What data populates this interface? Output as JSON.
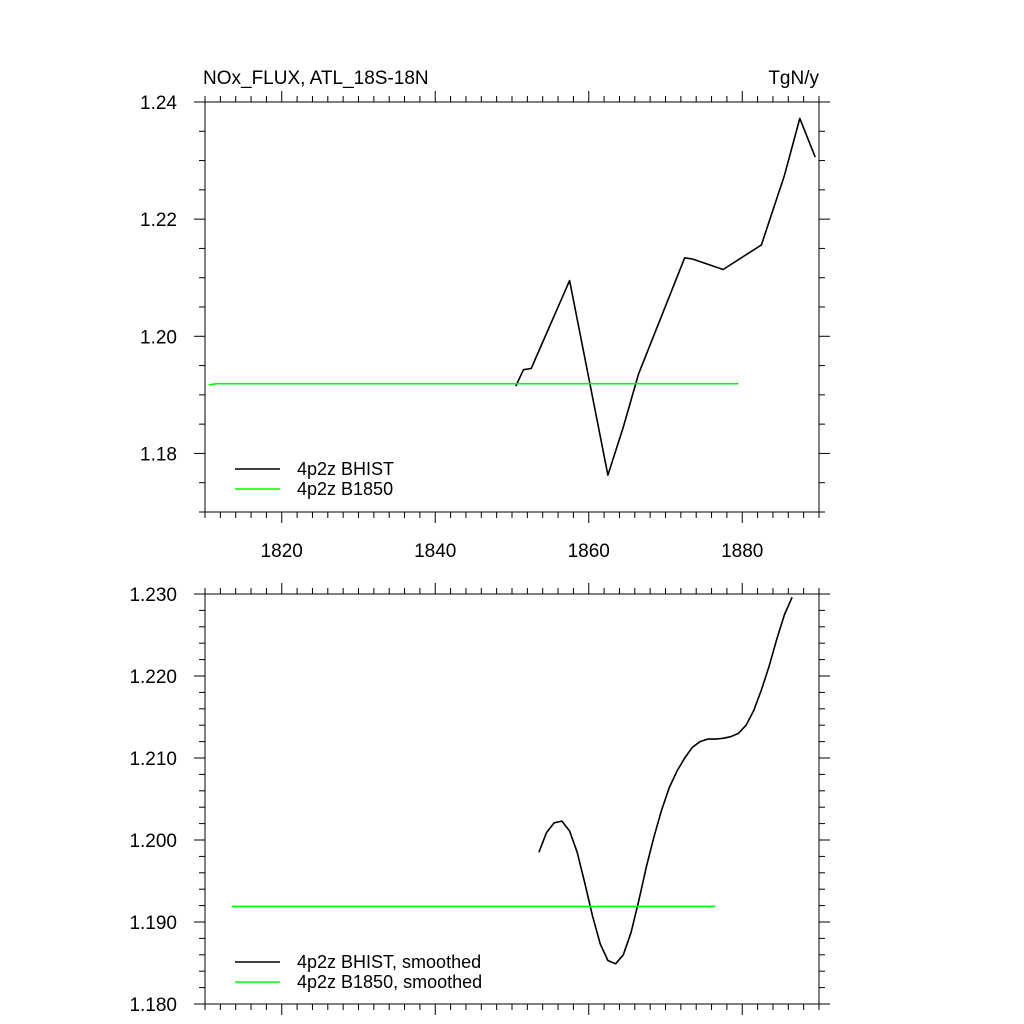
{
  "chart_data": [
    {
      "type": "line",
      "title_left": "NOx_FLUX, ATL_18S-18N",
      "title_right": "TgN/y",
      "xlim": [
        1810,
        1890
      ],
      "ylim": [
        1.17,
        1.24
      ],
      "xticks": [
        1820,
        1840,
        1860,
        1880
      ],
      "xtick_labels": [
        "1820",
        "1840",
        "1860",
        "1880"
      ],
      "yticks": [
        1.18,
        1.2,
        1.22,
        1.24
      ],
      "ytick_labels": [
        "1.18",
        "1.20",
        "1.22",
        "1.24"
      ],
      "legend_position": "bottom-left",
      "series": [
        {
          "name": "4p2z BHIST",
          "color": "#000000",
          "x": [
            1850.5,
            1851.5,
            1852.5,
            1857.5,
            1862.5,
            1864.5,
            1866.5,
            1872.5,
            1873.5,
            1877.5,
            1882.5,
            1885.5,
            1887.5,
            1889.5
          ],
          "y": [
            1.1915,
            1.1943,
            1.1945,
            1.2095,
            1.1763,
            1.1845,
            1.1936,
            1.2134,
            1.2132,
            1.2114,
            1.2156,
            1.2275,
            1.2372,
            1.2306
          ]
        },
        {
          "name": "4p2z B1850",
          "color": "#00ff00",
          "x": [
            1810.5,
            1811.5,
            1812.5,
            1830,
            1850,
            1865,
            1879.5
          ],
          "y": [
            1.1917,
            1.1919,
            1.1919,
            1.1919,
            1.1919,
            1.1919,
            1.1919
          ]
        }
      ]
    },
    {
      "type": "line",
      "xlim": [
        1810,
        1890
      ],
      "ylim": [
        1.18,
        1.23
      ],
      "xticks": [
        1820,
        1840,
        1860,
        1880
      ],
      "yticks": [
        1.18,
        1.19,
        1.2,
        1.21,
        1.22,
        1.23
      ],
      "ytick_labels": [
        "1.180",
        "1.190",
        "1.200",
        "1.210",
        "1.220",
        "1.230"
      ],
      "legend_position": "bottom-left",
      "series": [
        {
          "name": "4p2z BHIST, smoothed",
          "color": "#000000",
          "x": [
            1853.5,
            1854.5,
            1855.5,
            1856.5,
            1857.5,
            1858.5,
            1859.5,
            1860.5,
            1861.5,
            1862.5,
            1863.5,
            1864.5,
            1865.5,
            1866.5,
            1867.5,
            1868.5,
            1869.5,
            1870.5,
            1871.5,
            1872.5,
            1873.5,
            1874.5,
            1875.5,
            1876.5,
            1877.5,
            1878.5,
            1879.5,
            1880.5,
            1881.5,
            1882.5,
            1883.5,
            1884.5,
            1885.5,
            1886.5
          ],
          "y": [
            1.1985,
            1.2009,
            1.2021,
            1.2023,
            1.2011,
            1.1985,
            1.1947,
            1.1907,
            1.1873,
            1.1853,
            1.1849,
            1.186,
            1.1887,
            1.1925,
            1.1967,
            1.2004,
            1.2037,
            1.2064,
            1.2084,
            1.21,
            1.2113,
            1.212,
            1.2123,
            1.2123,
            1.2124,
            1.2126,
            1.213,
            1.214,
            1.2158,
            1.2183,
            1.2212,
            1.2245,
            1.2275,
            1.2296
          ]
        },
        {
          "name": "4p2z B1850, smoothed",
          "color": "#00ff00",
          "x": [
            1813.5,
            1830,
            1850,
            1865,
            1876.5
          ],
          "y": [
            1.1919,
            1.1919,
            1.1919,
            1.1919,
            1.1919
          ]
        }
      ]
    }
  ]
}
